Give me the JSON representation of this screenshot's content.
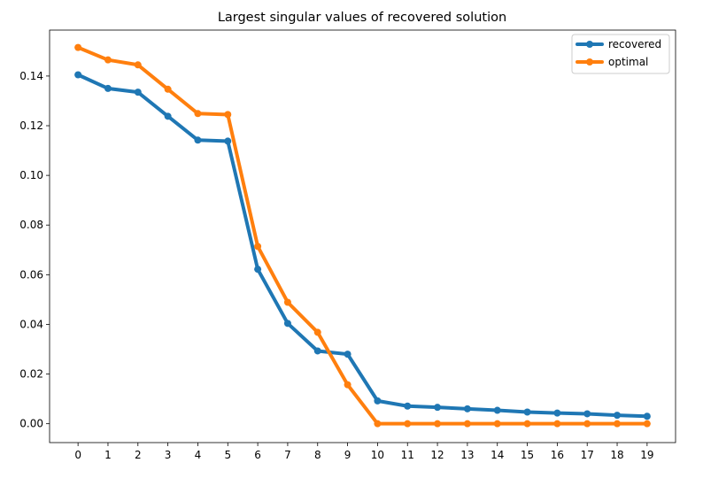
{
  "chart_data": {
    "type": "line",
    "title": "Largest singular values of recovered solution",
    "xlabel": "",
    "ylabel": "",
    "x": [
      0,
      1,
      2,
      3,
      4,
      5,
      6,
      7,
      8,
      9,
      10,
      11,
      12,
      13,
      14,
      15,
      16,
      17,
      18,
      19
    ],
    "xticks": [
      "0",
      "1",
      "2",
      "3",
      "4",
      "5",
      "6",
      "7",
      "8",
      "9",
      "10",
      "11",
      "12",
      "13",
      "14",
      "15",
      "16",
      "17",
      "18",
      "19"
    ],
    "yticks": [
      "0.00",
      "0.02",
      "0.04",
      "0.06",
      "0.08",
      "0.10",
      "0.12",
      "0.14"
    ],
    "ylim": [
      -0.0076,
      0.1585
    ],
    "xlim": [
      -0.95,
      19.95
    ],
    "grid": false,
    "legend_position": "top-right",
    "series": [
      {
        "name": "recovered",
        "color": "#1f77b4",
        "values": [
          0.1405,
          0.135,
          0.1335,
          0.1238,
          0.1142,
          0.1138,
          0.0622,
          0.0404,
          0.0293,
          0.028,
          0.0092,
          0.0071,
          0.0066,
          0.006,
          0.0054,
          0.0047,
          0.0043,
          0.004,
          0.0034,
          0.003
        ]
      },
      {
        "name": "optimal",
        "color": "#ff7f0e",
        "values": [
          0.1515,
          0.1465,
          0.1445,
          0.1347,
          0.1249,
          0.1245,
          0.0714,
          0.0489,
          0.0368,
          0.0157,
          0.0,
          0.0,
          0.0,
          0.0,
          0.0,
          0.0,
          0.0,
          0.0,
          0.0,
          0.0
        ]
      }
    ]
  }
}
